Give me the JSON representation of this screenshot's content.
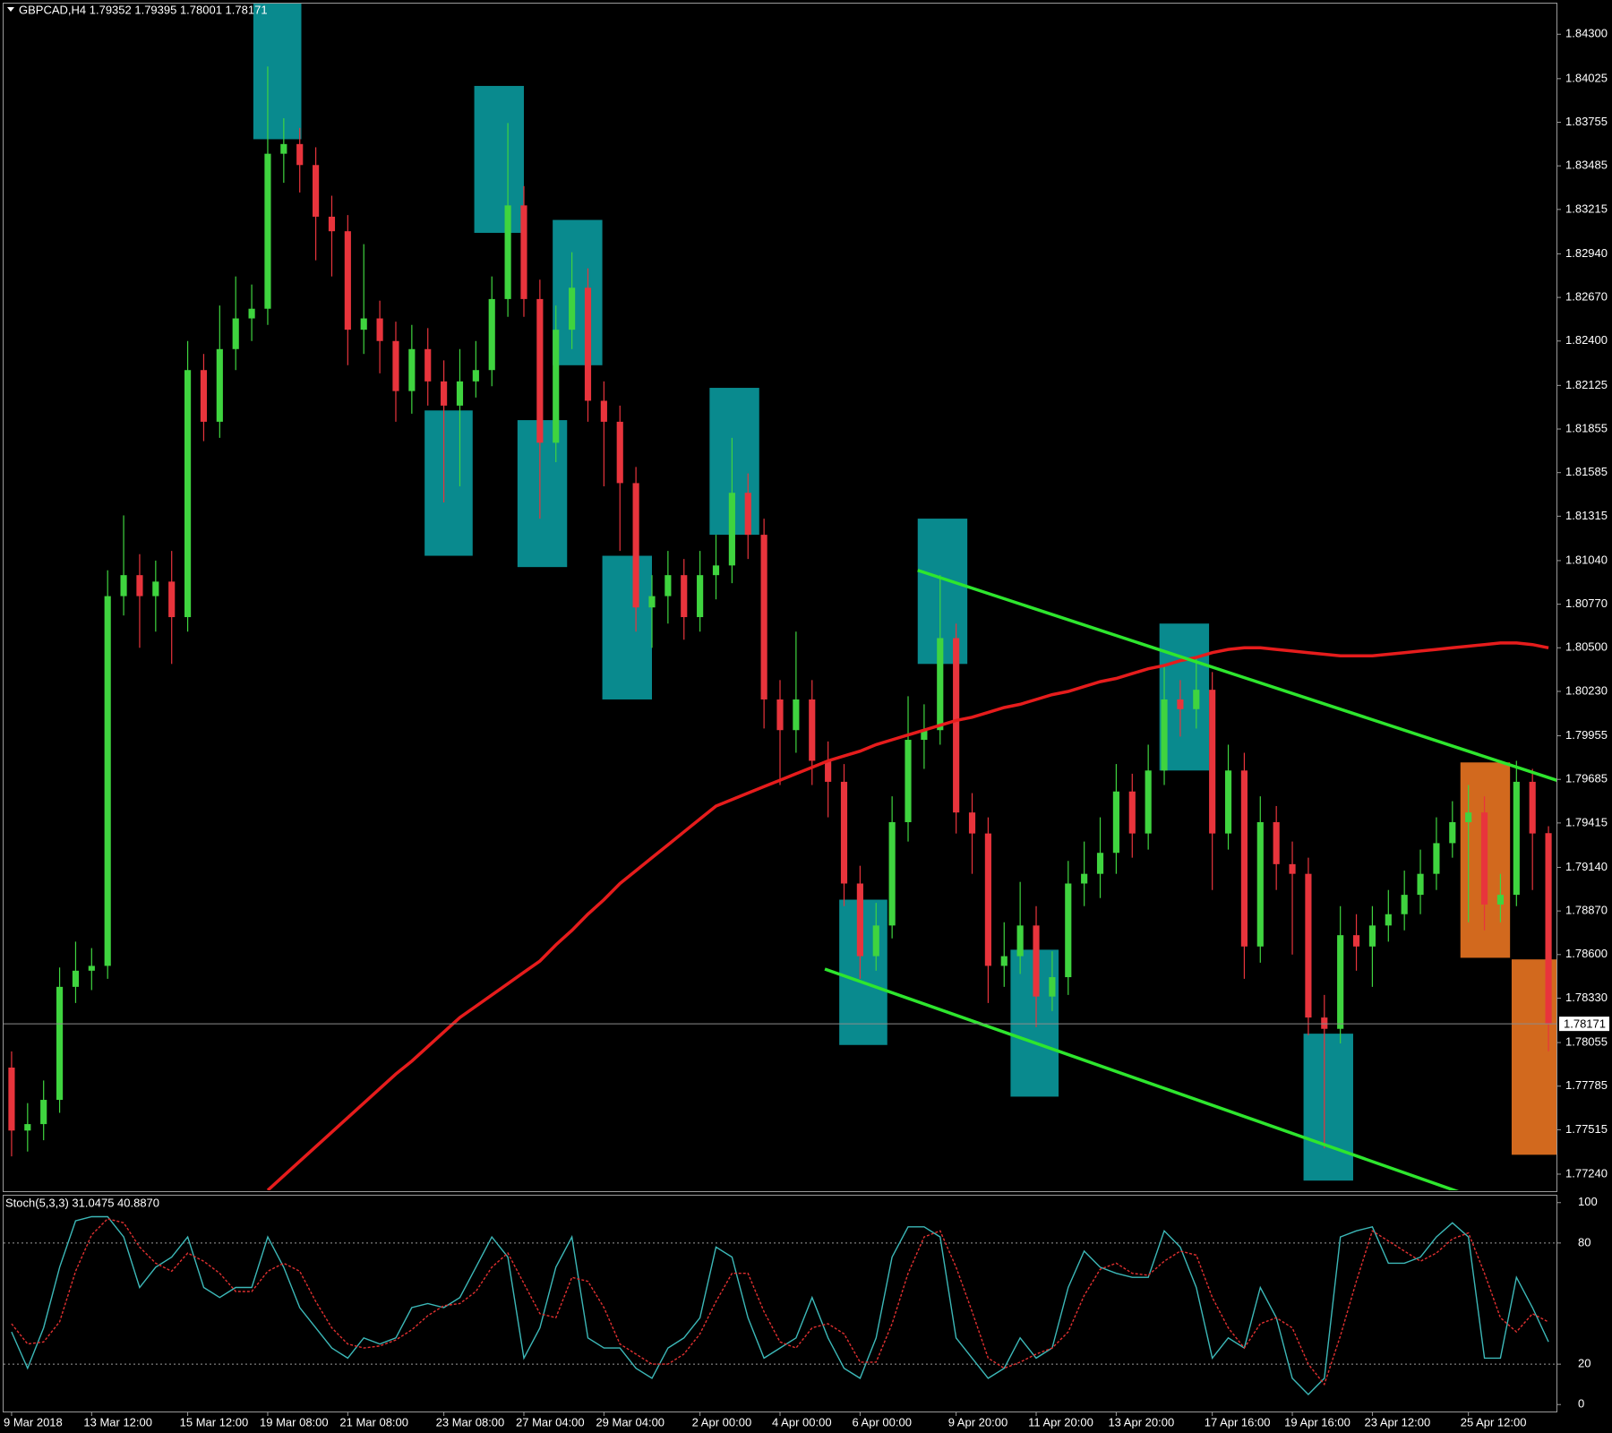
{
  "chart_data": [
    {
      "type": "candlestick",
      "title": "GBPCAD,H4  1.79352 1.79395 1.78001 1.78171",
      "bull_color": "#3fd43f",
      "bear_color": "#e8343c",
      "ylim": [
        1.7714,
        1.8449
      ],
      "yticks": [
        {
          "value": 1.843,
          "label": "1.84300"
        },
        {
          "value": 1.84025,
          "label": "1.84025"
        },
        {
          "value": 1.83755,
          "label": "1.83755"
        },
        {
          "value": 1.83485,
          "label": "1.83485"
        },
        {
          "value": 1.83215,
          "label": "1.83215"
        },
        {
          "value": 1.8294,
          "label": "1.82940"
        },
        {
          "value": 1.8267,
          "label": "1.82670"
        },
        {
          "value": 1.824,
          "label": "1.82400"
        },
        {
          "value": 1.82125,
          "label": "1.82125"
        },
        {
          "value": 1.81855,
          "label": "1.81855"
        },
        {
          "value": 1.81585,
          "label": "1.81585"
        },
        {
          "value": 1.81315,
          "label": "1.81315"
        },
        {
          "value": 1.8104,
          "label": "1.81040"
        },
        {
          "value": 1.8077,
          "label": "1.80770"
        },
        {
          "value": 1.805,
          "label": "1.80500"
        },
        {
          "value": 1.8023,
          "label": "1.80230"
        },
        {
          "value": 1.79955,
          "label": "1.79955"
        },
        {
          "value": 1.79685,
          "label": "1.79685"
        },
        {
          "value": 1.79415,
          "label": "1.79415"
        },
        {
          "value": 1.7914,
          "label": "1.79140"
        },
        {
          "value": 1.7887,
          "label": "1.78870"
        },
        {
          "value": 1.786,
          "label": "1.78600"
        },
        {
          "value": 1.7833,
          "label": "1.78330"
        },
        {
          "value": 1.78055,
          "label": "1.78055"
        },
        {
          "value": 1.77785,
          "label": "1.77785"
        },
        {
          "value": 1.77515,
          "label": "1.77515"
        },
        {
          "value": 1.7724,
          "label": "1.77240"
        }
      ],
      "open": [
        1.779,
        1.7751,
        1.7755,
        1.777,
        1.784,
        1.785,
        1.7853,
        1.8082,
        1.8095,
        1.8082,
        1.8091,
        1.8069,
        1.8222,
        1.819,
        1.8235,
        1.8254,
        1.826,
        1.8356,
        1.8362,
        1.8349,
        1.8317,
        1.8308,
        1.8247,
        1.8254,
        1.824,
        1.8209,
        1.8235,
        1.8215,
        1.82,
        1.8215,
        1.8222,
        1.8266,
        1.8324,
        1.8266,
        1.8177,
        1.8247,
        1.8273,
        1.8203,
        1.819,
        1.8152,
        1.8075,
        1.8082,
        1.8095,
        1.8069,
        1.8095,
        1.8101,
        1.8146,
        1.812,
        1.8018,
        1.7999,
        1.8018,
        1.798,
        1.7967,
        1.7904,
        1.7859,
        1.7878,
        1.7942,
        1.7993,
        1.7999,
        1.8056,
        1.7948,
        1.7935,
        1.7853,
        1.7859,
        1.7878,
        1.7834,
        1.7846,
        1.7904,
        1.791,
        1.7923,
        1.7961,
        1.7935,
        1.7974,
        1.8018,
        1.8012,
        1.8024,
        1.7935,
        1.7974,
        1.7865,
        1.7942,
        1.7916,
        1.791,
        1.7821,
        1.7814,
        1.7872,
        1.7865,
        1.7878,
        1.7885,
        1.7897,
        1.791,
        1.7929,
        1.7942,
        1.7948,
        1.7891,
        1.7897,
        1.7967,
        1.79352
      ],
      "high": [
        1.78,
        1.7768,
        1.7782,
        1.7852,
        1.7868,
        1.7864,
        1.8098,
        1.8132,
        1.8108,
        1.8104,
        1.811,
        1.824,
        1.8232,
        1.8262,
        1.828,
        1.8275,
        1.841,
        1.8378,
        1.8372,
        1.836,
        1.833,
        1.8318,
        1.83,
        1.8265,
        1.8252,
        1.825,
        1.8248,
        1.8228,
        1.8235,
        1.824,
        1.828,
        1.8375,
        1.8336,
        1.8278,
        1.8262,
        1.8295,
        1.8285,
        1.8215,
        1.82,
        1.8162,
        1.8095,
        1.811,
        1.8105,
        1.811,
        1.812,
        1.818,
        1.8158,
        1.813,
        1.803,
        1.806,
        1.803,
        1.7992,
        1.7978,
        1.7915,
        1.7892,
        1.7958,
        1.802,
        1.8015,
        1.8095,
        1.8065,
        1.796,
        1.7945,
        1.788,
        1.7905,
        1.789,
        1.7862,
        1.7918,
        1.793,
        1.7945,
        1.7978,
        1.7972,
        1.799,
        1.804,
        1.803,
        1.8045,
        1.8035,
        1.799,
        1.7985,
        1.7958,
        1.7952,
        1.793,
        1.792,
        1.7835,
        1.789,
        1.7885,
        1.789,
        1.79,
        1.7912,
        1.7925,
        1.7945,
        1.7955,
        1.7965,
        1.7958,
        1.791,
        1.798,
        1.7975,
        1.79395
      ],
      "low": [
        1.7735,
        1.7738,
        1.7745,
        1.7762,
        1.783,
        1.7838,
        1.7845,
        1.807,
        1.805,
        1.806,
        1.804,
        1.806,
        1.8178,
        1.818,
        1.8222,
        1.824,
        1.825,
        1.8338,
        1.8332,
        1.829,
        1.828,
        1.8225,
        1.8232,
        1.822,
        1.819,
        1.8195,
        1.82,
        1.814,
        1.815,
        1.8205,
        1.8212,
        1.8255,
        1.8255,
        1.813,
        1.8165,
        1.8235,
        1.819,
        1.815,
        1.811,
        1.806,
        1.805,
        1.8065,
        1.8055,
        1.806,
        1.808,
        1.809,
        1.8105,
        1.8,
        1.7965,
        1.7985,
        1.7965,
        1.7945,
        1.789,
        1.7845,
        1.785,
        1.787,
        1.793,
        1.7975,
        1.799,
        1.7935,
        1.791,
        1.783,
        1.784,
        1.7848,
        1.7815,
        1.7825,
        1.7835,
        1.789,
        1.7895,
        1.791,
        1.792,
        1.7925,
        1.7965,
        1.7995,
        1.8,
        1.79,
        1.7925,
        1.7845,
        1.7855,
        1.79,
        1.786,
        1.781,
        1.774,
        1.7805,
        1.785,
        1.784,
        1.7868,
        1.7875,
        1.7885,
        1.79,
        1.792,
        1.788,
        1.7875,
        1.788,
        1.789,
        1.79,
        1.78001
      ],
      "close": [
        1.7751,
        1.7755,
        1.777,
        1.784,
        1.785,
        1.7853,
        1.8082,
        1.8095,
        1.8082,
        1.8091,
        1.8069,
        1.8222,
        1.819,
        1.8235,
        1.8254,
        1.826,
        1.8356,
        1.8362,
        1.8349,
        1.8317,
        1.8308,
        1.8247,
        1.8254,
        1.824,
        1.8209,
        1.8235,
        1.8215,
        1.82,
        1.8215,
        1.8222,
        1.8266,
        1.8324,
        1.8266,
        1.8177,
        1.8247,
        1.8273,
        1.8203,
        1.819,
        1.8152,
        1.8075,
        1.8082,
        1.8095,
        1.8069,
        1.8095,
        1.8101,
        1.8146,
        1.812,
        1.8018,
        1.7999,
        1.8018,
        1.798,
        1.7967,
        1.7904,
        1.7859,
        1.7878,
        1.7942,
        1.7993,
        1.7999,
        1.8056,
        1.7948,
        1.7935,
        1.7853,
        1.7859,
        1.7878,
        1.7834,
        1.7846,
        1.7904,
        1.791,
        1.7923,
        1.7961,
        1.7935,
        1.7974,
        1.8018,
        1.8012,
        1.8024,
        1.7935,
        1.7974,
        1.7865,
        1.7942,
        1.7916,
        1.791,
        1.7821,
        1.7814,
        1.7872,
        1.7865,
        1.7878,
        1.7885,
        1.7897,
        1.791,
        1.7929,
        1.7942,
        1.7948,
        1.7891,
        1.7897,
        1.7967,
        1.7935,
        1.78171
      ],
      "series": [
        {
          "color": "#e61c1c",
          "values": [
            null,
            null,
            null,
            null,
            null,
            null,
            null,
            null,
            null,
            null,
            null,
            null,
            null,
            null,
            null,
            null,
            1.7714,
            1.7723,
            1.7732,
            1.7741,
            1.775,
            1.7759,
            1.7768,
            1.7777,
            1.7786,
            1.7794,
            1.7803,
            1.7812,
            1.7821,
            1.7828,
            1.7835,
            1.7842,
            1.7849,
            1.7856,
            1.7866,
            1.7875,
            1.7885,
            1.7894,
            1.7904,
            1.7912,
            1.792,
            1.7928,
            1.7936,
            1.7944,
            1.7952,
            1.7956,
            1.796,
            1.7964,
            1.7968,
            1.7972,
            1.7976,
            1.798,
            1.7983,
            1.7986,
            1.799,
            1.7993,
            1.7996,
            1.7999,
            1.8002,
            1.8005,
            1.8007,
            1.801,
            1.8013,
            1.8015,
            1.8018,
            1.8021,
            1.8023,
            1.8026,
            1.8029,
            1.8031,
            1.8034,
            1.8037,
            1.8039,
            1.8042,
            1.8044,
            1.8047,
            1.8049,
            1.805,
            1.805,
            1.8049,
            1.8048,
            1.8047,
            1.8046,
            1.8045,
            1.8045,
            1.8045,
            1.8046,
            1.8047,
            1.8048,
            1.8049,
            1.805,
            1.8051,
            1.8052,
            1.8053,
            1.8053,
            1.8052,
            1.805
          ]
        }
      ],
      "trendlines": [
        {
          "x": [
            56.6,
            96.8
          ],
          "y": [
            1.8098,
            1.7967
          ],
          "color": "#2ee62e"
        },
        {
          "x": [
            50.8,
            90.4
          ],
          "y": [
            1.7851,
            1.7713
          ],
          "color": "#2ee62e"
        }
      ],
      "zones": [
        {
          "x": [
            15.1,
            18.1
          ],
          "y": [
            1.8365,
            1.8449
          ],
          "color": "#098a8e"
        },
        {
          "x": [
            28.9,
            32.0
          ],
          "y": [
            1.8307,
            1.8398
          ],
          "color": "#098a8e"
        },
        {
          "x": [
            33.8,
            36.9
          ],
          "y": [
            1.8225,
            1.8315
          ],
          "color": "#098a8e"
        },
        {
          "x": [
            25.8,
            28.8
          ],
          "y": [
            1.8107,
            1.8197
          ],
          "color": "#098a8e"
        },
        {
          "x": [
            31.6,
            34.7
          ],
          "y": [
            1.81,
            1.8191
          ],
          "color": "#098a8e"
        },
        {
          "x": [
            36.9,
            40.0
          ],
          "y": [
            1.8018,
            1.8107
          ],
          "color": "#098a8e"
        },
        {
          "x": [
            43.6,
            46.7
          ],
          "y": [
            1.812,
            1.8211
          ],
          "color": "#098a8e"
        },
        {
          "x": [
            56.6,
            59.7
          ],
          "y": [
            1.804,
            1.813
          ],
          "color": "#098a8e"
        },
        {
          "x": [
            71.7,
            74.8
          ],
          "y": [
            1.7974,
            1.8065
          ],
          "color": "#098a8e"
        },
        {
          "x": [
            51.7,
            54.7
          ],
          "y": [
            1.7804,
            1.7894
          ],
          "color": "#098a8e"
        },
        {
          "x": [
            62.4,
            65.4
          ],
          "y": [
            1.7772,
            1.7863
          ],
          "color": "#098a8e"
        },
        {
          "x": [
            80.7,
            83.8
          ],
          "y": [
            1.772,
            1.7811
          ],
          "color": "#098a8e"
        },
        {
          "x": [
            90.5,
            93.6
          ],
          "y": [
            1.7858,
            1.7979
          ],
          "color": "#d2691e"
        },
        {
          "x": [
            93.7,
            96.7
          ],
          "y": [
            1.7736,
            1.7857
          ],
          "color": "#d2691e"
        }
      ]
    },
    {
      "type": "line",
      "title": "Stoch(5,3,3) 31.0475 40.8870",
      "ylim": [
        -3,
        103
      ],
      "yticks": [
        100,
        80,
        20,
        0
      ],
      "levels": [
        80,
        20
      ],
      "xticks": [
        {
          "value": 0,
          "label": "9 Mar 2018"
        },
        {
          "value": 5,
          "label": "13 Mar 12:00"
        },
        {
          "value": 11,
          "label": "15 Mar 12:00"
        },
        {
          "value": 16,
          "label": "19 Mar 08:00"
        },
        {
          "value": 21,
          "label": "21 Mar 08:00"
        },
        {
          "value": 27,
          "label": "23 Mar 08:00"
        },
        {
          "value": 32,
          "label": "27 Mar 04:00"
        },
        {
          "value": 37,
          "label": "29 Mar 04:00"
        },
        {
          "value": 43,
          "label": "2 Apr 00:00"
        },
        {
          "value": 48,
          "label": "4 Apr 00:00"
        },
        {
          "value": 53,
          "label": "6 Apr 00:00"
        },
        {
          "value": 59,
          "label": "9 Apr 20:00"
        },
        {
          "value": 64,
          "label": "11 Apr 20:00"
        },
        {
          "value": 69,
          "label": "13 Apr 20:00"
        },
        {
          "value": 75,
          "label": "17 Apr 16:00"
        },
        {
          "value": 80,
          "label": "19 Apr 16:00"
        },
        {
          "value": 85,
          "label": "23 Apr 12:00"
        },
        {
          "value": 91,
          "label": "25 Apr 12:00"
        }
      ],
      "series": [
        {
          "color": "#3cb8b8",
          "values": [
            36,
            18,
            38,
            68,
            91,
            93,
            93,
            83,
            58,
            68,
            73,
            83,
            58,
            53,
            58,
            58,
            83,
            68,
            48,
            38,
            28,
            23,
            33,
            30,
            33,
            48,
            50,
            48,
            53,
            68,
            83,
            73,
            23,
            38,
            68,
            83,
            33,
            28,
            28,
            18,
            13,
            28,
            33,
            43,
            78,
            73,
            43,
            23,
            28,
            33,
            53,
            33,
            18,
            13,
            33,
            73,
            88,
            88,
            83,
            33,
            23,
            13,
            18,
            33,
            23,
            28,
            58,
            76,
            68,
            65,
            63,
            63,
            86,
            78,
            58,
            23,
            33,
            28,
            58,
            43,
            13,
            5,
            13,
            83,
            86,
            88,
            70,
            70,
            73,
            83,
            90,
            83,
            23,
            23,
            63,
            48,
            31.0475
          ]
        },
        {
          "color": "#e03030",
          "dashed": true,
          "values": [
            40,
            30,
            31,
            41,
            66,
            84,
            92,
            90,
            78,
            70,
            66,
            75,
            71,
            65,
            56,
            56,
            66,
            70,
            66,
            51,
            38,
            30,
            28,
            29,
            32,
            37,
            44,
            49,
            50,
            56,
            68,
            75,
            60,
            45,
            43,
            63,
            61,
            48,
            30,
            25,
            20,
            20,
            25,
            35,
            51,
            65,
            65,
            46,
            31,
            28,
            38,
            40,
            35,
            21,
            21,
            40,
            65,
            83,
            86,
            68,
            46,
            23,
            18,
            21,
            25,
            28,
            36,
            54,
            67,
            70,
            65,
            64,
            71,
            76,
            74,
            53,
            38,
            28,
            40,
            43,
            38,
            20,
            10,
            34,
            61,
            86,
            81,
            76,
            71,
            75,
            82,
            85,
            65,
            43,
            36,
            45,
            40.887
          ]
        }
      ]
    }
  ]
}
